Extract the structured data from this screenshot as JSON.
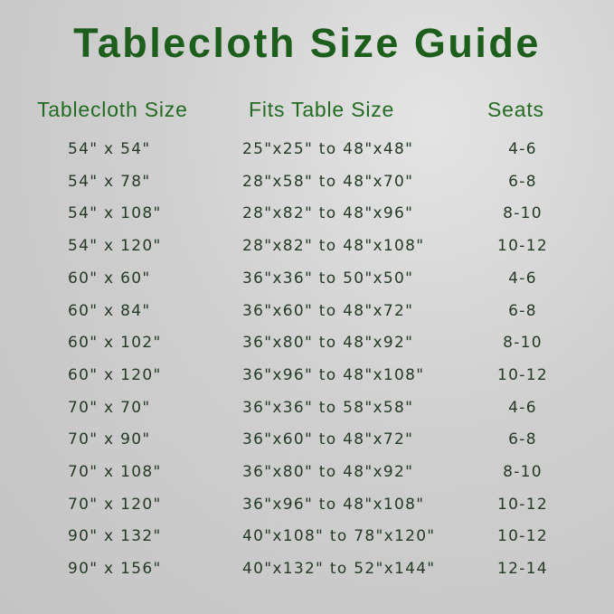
{
  "title": "Tablecloth Size Guide",
  "headers": {
    "tablecloth_size": "Tablecloth Size",
    "fits_table_size": "Fits Table Size",
    "seats": "Seats"
  },
  "rows": [
    {
      "size": "54\" x 54\"",
      "fits": "25\"x25\" to 48\"x48\"",
      "seats": "4-6"
    },
    {
      "size": "54\" x 78\"",
      "fits": "28\"x58\" to 48\"x70\"",
      "seats": "6-8"
    },
    {
      "size": "54\" x 108\"",
      "fits": "28\"x82\" to 48\"x96\"",
      "seats": "8-10"
    },
    {
      "size": "54\" x 120\"",
      "fits": "28\"x82\" to 48\"x108\"",
      "seats": "10-12"
    },
    {
      "size": "60\" x 60\"",
      "fits": "36\"x36\" to 50\"x50\"",
      "seats": "4-6"
    },
    {
      "size": "60\" x 84\"",
      "fits": "36\"x60\" to 48\"x72\"",
      "seats": "6-8"
    },
    {
      "size": "60\" x 102\"",
      "fits": "36\"x80\" to 48\"x92\"",
      "seats": "8-10"
    },
    {
      "size": "60\" x 120\"",
      "fits": "36\"x96\" to 48\"x108\"",
      "seats": "10-12"
    },
    {
      "size": "70\" x 70\"",
      "fits": "36\"x36\" to 58\"x58\"",
      "seats": "4-6"
    },
    {
      "size": "70\" x 90\"",
      "fits": "36\"x60\" to 48\"x72\"",
      "seats": "6-8"
    },
    {
      "size": "70\" x 108\"",
      "fits": "36\"x80\" to 48\"x92\"",
      "seats": "8-10"
    },
    {
      "size": "70\" x 120\"",
      "fits": "36\"x96\" to 48\"x108\"",
      "seats": "10-12"
    },
    {
      "size": "90\" x 132\"",
      "fits": "40\"x108\" to 78\"x120\"",
      "seats": "10-12"
    },
    {
      "size": "90\" x 156\"",
      "fits": "40\"x132\" to 52\"x144\"",
      "seats": "12-14"
    }
  ],
  "colors": {
    "title": "#1d5e1d",
    "header": "#236b23",
    "text": "#253a25"
  }
}
